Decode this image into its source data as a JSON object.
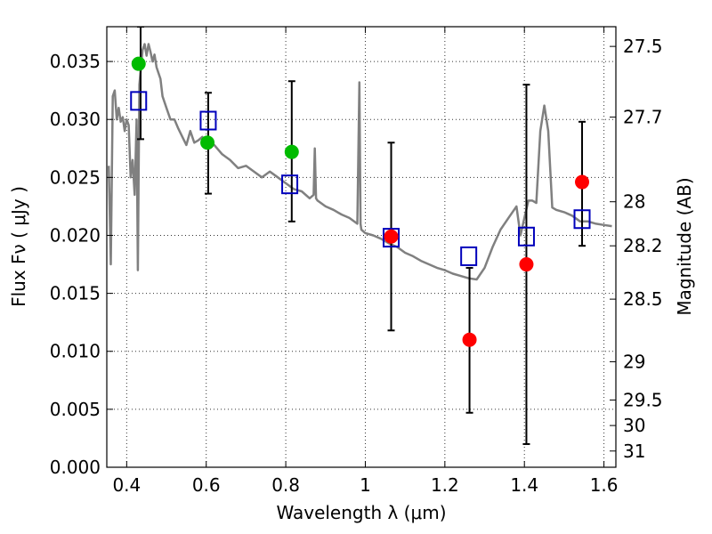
{
  "chart_data": {
    "type": "scatter",
    "title": "",
    "xlabel": "Wavelength  λ (μm)",
    "ylabel": "Flux  Fν  ( μJy )",
    "ylabel_right": "Magnitude (AB)",
    "xlim": [
      0.35,
      1.63
    ],
    "ylim": [
      0.0,
      0.038
    ],
    "grid": true,
    "x_ticks": [
      0.4,
      0.6,
      0.8,
      1.0,
      1.2,
      1.4,
      1.6
    ],
    "x_tick_labels": [
      "0.4",
      "0.6",
      "0.8",
      "1",
      "1.2",
      "1.4",
      "1.6"
    ],
    "y_ticks": [
      0.0,
      0.005,
      0.01,
      0.015,
      0.02,
      0.025,
      0.03,
      0.035
    ],
    "y_tick_labels": [
      "0.000",
      "0.005",
      "0.010",
      "0.015",
      "0.020",
      "0.025",
      "0.030",
      "0.035"
    ],
    "right_ticks": [
      {
        "label": "27.5",
        "flux": 0.0363
      },
      {
        "label": "27.7",
        "flux": 0.0302
      },
      {
        "label": "28",
        "flux": 0.0229
      },
      {
        "label": "28.2",
        "flux": 0.0191
      },
      {
        "label": "28.5",
        "flux": 0.0145
      },
      {
        "label": "29",
        "flux": 0.0091
      },
      {
        "label": "29.5",
        "flux": 0.0058
      },
      {
        "label": "30",
        "flux": 0.0036
      },
      {
        "label": "31",
        "flux": 0.0014
      }
    ],
    "colors": {
      "model_line": "#808080",
      "squares": "#0000bb",
      "green": "#00bb00",
      "red": "#ff0000",
      "errorbar": "#000000"
    },
    "series": [
      {
        "kind": "line",
        "x": [
          0.355,
          0.36,
          0.365,
          0.37,
          0.375,
          0.38,
          0.385,
          0.39,
          0.395,
          0.4,
          0.405,
          0.41,
          0.415,
          0.42,
          0.425,
          0.428,
          0.432,
          0.436,
          0.44,
          0.445,
          0.45,
          0.455,
          0.46,
          0.465,
          0.47,
          0.475,
          0.48,
          0.485,
          0.49,
          0.5,
          0.51,
          0.52,
          0.53,
          0.54,
          0.55,
          0.56,
          0.57,
          0.58,
          0.59,
          0.6,
          0.62,
          0.64,
          0.66,
          0.68,
          0.7,
          0.72,
          0.74,
          0.76,
          0.78,
          0.8,
          0.82,
          0.84,
          0.86,
          0.87,
          0.873,
          0.876,
          0.88,
          0.9,
          0.92,
          0.94,
          0.96,
          0.98,
          0.985,
          0.988,
          0.99,
          1.0,
          1.02,
          1.04,
          1.06,
          1.08,
          1.1,
          1.12,
          1.14,
          1.16,
          1.18,
          1.2,
          1.22,
          1.24,
          1.26,
          1.28,
          1.3,
          1.32,
          1.34,
          1.36,
          1.38,
          1.39,
          1.4,
          1.41,
          1.42,
          1.43,
          1.44,
          1.45,
          1.46,
          1.47,
          1.48,
          1.5,
          1.52,
          1.54,
          1.56,
          1.58,
          1.6,
          1.62
        ],
        "values": [
          0.026,
          0.0175,
          0.032,
          0.0325,
          0.03,
          0.031,
          0.0298,
          0.0302,
          0.029,
          0.03,
          0.0295,
          0.025,
          0.0265,
          0.0235,
          0.03,
          0.017,
          0.033,
          0.0345,
          0.036,
          0.0365,
          0.0355,
          0.0365,
          0.0358,
          0.035,
          0.0356,
          0.0345,
          0.034,
          0.0335,
          0.032,
          0.031,
          0.03,
          0.03,
          0.0292,
          0.0285,
          0.0278,
          0.029,
          0.028,
          0.0282,
          0.0285,
          0.028,
          0.0278,
          0.027,
          0.0265,
          0.0258,
          0.026,
          0.0255,
          0.025,
          0.0255,
          0.025,
          0.0245,
          0.024,
          0.0238,
          0.0232,
          0.0235,
          0.0275,
          0.0232,
          0.023,
          0.0225,
          0.0222,
          0.0218,
          0.0215,
          0.021,
          0.0332,
          0.021,
          0.0205,
          0.0202,
          0.02,
          0.0197,
          0.0193,
          0.019,
          0.0185,
          0.0182,
          0.0178,
          0.0175,
          0.0172,
          0.017,
          0.0167,
          0.0165,
          0.0163,
          0.0162,
          0.0172,
          0.019,
          0.0205,
          0.0215,
          0.0225,
          0.02,
          0.0215,
          0.023,
          0.023,
          0.0228,
          0.029,
          0.0312,
          0.029,
          0.0224,
          0.0222,
          0.022,
          0.0217,
          0.0212,
          0.0212,
          0.021,
          0.0209,
          0.0208
        ]
      },
      {
        "kind": "squares",
        "x": [
          0.43,
          0.605,
          0.81,
          1.065,
          1.26,
          1.405,
          1.545
        ],
        "values": [
          0.0316,
          0.0299,
          0.0244,
          0.0198,
          0.0182,
          0.0199,
          0.0214
        ]
      },
      {
        "kind": "green-points",
        "x": [
          0.43,
          0.603,
          0.815
        ],
        "values": [
          0.0348,
          0.028,
          0.0272
        ]
      },
      {
        "kind": "red-points",
        "x": [
          1.065,
          1.262,
          1.405,
          1.545
        ],
        "values": [
          0.0199,
          0.011,
          0.0175,
          0.0246
        ]
      },
      {
        "kind": "errorbars",
        "x": [
          0.435,
          0.605,
          0.815,
          1.065,
          1.262,
          1.405,
          1.545
        ],
        "low": [
          0.0283,
          0.0236,
          0.0212,
          0.0118,
          0.0047,
          0.002,
          0.0191
        ],
        "high": [
          0.038,
          0.0323,
          0.0333,
          0.028,
          0.0172,
          0.033,
          0.0298
        ]
      }
    ]
  }
}
